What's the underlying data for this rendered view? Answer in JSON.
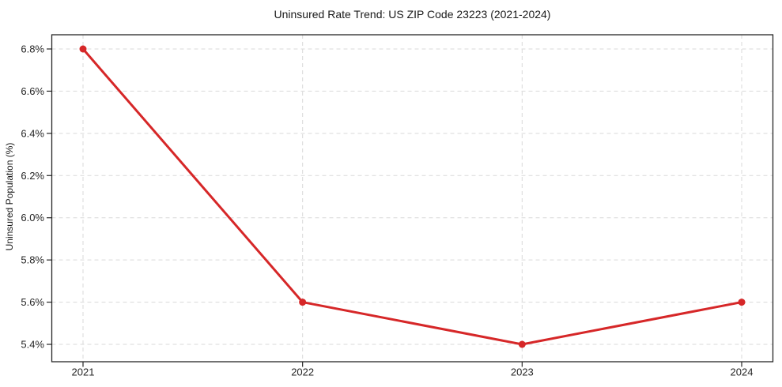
{
  "chart_data": {
    "type": "line",
    "title": "Uninsured Rate Trend: US ZIP Code 23223 (2021-2024)",
    "xlabel": "",
    "ylabel": "Uninsured Population (%)",
    "categories": [
      "2021",
      "2022",
      "2023",
      "2024"
    ],
    "values": [
      6.8,
      5.6,
      5.4,
      5.6
    ],
    "y_ticks": [
      {
        "value": 6.8,
        "label": "6.8%"
      },
      {
        "value": 6.6,
        "label": "6.6%"
      },
      {
        "value": 6.4,
        "label": "6.4%"
      },
      {
        "value": 6.2,
        "label": "6.2%"
      },
      {
        "value": 6.0,
        "label": "6.0%"
      },
      {
        "value": 5.8,
        "label": "5.8%"
      },
      {
        "value": 5.6,
        "label": "5.6%"
      },
      {
        "value": 5.4,
        "label": "5.4%"
      }
    ],
    "ylim": [
      5.32,
      6.87
    ],
    "grid": true,
    "grid_style": "dashed",
    "legend": false,
    "marker": "circle",
    "line_width": 3,
    "colors": {
      "line": "#d62728",
      "grid": "#d9d9d9",
      "axis": "#262626",
      "text": "#1a1a1a",
      "background": "#ffffff"
    }
  }
}
